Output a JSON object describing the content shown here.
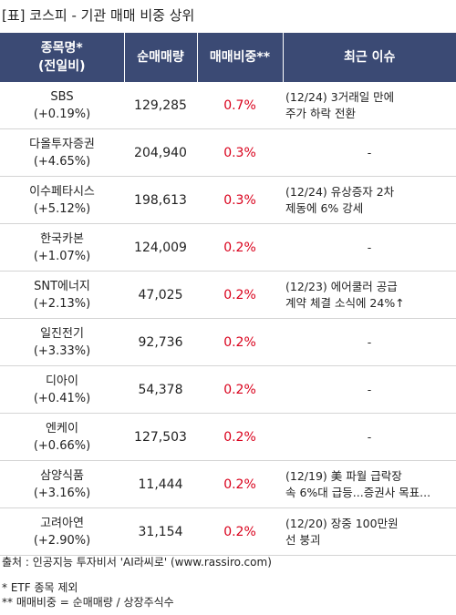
{
  "title": "[표] 코스피 - 기관 매매 비중 상위",
  "headers": {
    "name_line1": "종목명*",
    "name_line2": "(전일비)",
    "volume": "순매매량",
    "ratio": "매매비중**",
    "issue": "최근 이슈"
  },
  "rows": [
    {
      "name": "SBS",
      "change": "(+0.19%)",
      "volume": "129,285",
      "ratio": "0.7%",
      "issue_line1": "(12/24) 3거래일 만에",
      "issue_line2": "주가 하락 전환"
    },
    {
      "name": "다올투자증권",
      "change": "(+4.65%)",
      "volume": "204,940",
      "ratio": "0.3%",
      "issue_line1": "-",
      "issue_line2": ""
    },
    {
      "name": "이수페타시스",
      "change": "(+5.12%)",
      "volume": "198,613",
      "ratio": "0.3%",
      "issue_line1": "(12/24) 유상증자 2차",
      "issue_line2": "제동에 6% 강세"
    },
    {
      "name": "한국카본",
      "change": "(+1.07%)",
      "volume": "124,009",
      "ratio": "0.2%",
      "issue_line1": "-",
      "issue_line2": ""
    },
    {
      "name": "SNT에너지",
      "change": "(+2.13%)",
      "volume": "47,025",
      "ratio": "0.2%",
      "issue_line1": "(12/23) 에어쿨러 공급",
      "issue_line2": "계약 체결 소식에 24%↑"
    },
    {
      "name": "일진전기",
      "change": "(+3.33%)",
      "volume": "92,736",
      "ratio": "0.2%",
      "issue_line1": "-",
      "issue_line2": ""
    },
    {
      "name": "디아이",
      "change": "(+0.41%)",
      "volume": "54,378",
      "ratio": "0.2%",
      "issue_line1": "-",
      "issue_line2": ""
    },
    {
      "name": "엔케이",
      "change": "(+0.66%)",
      "volume": "127,503",
      "ratio": "0.2%",
      "issue_line1": "-",
      "issue_line2": ""
    },
    {
      "name": "삼양식품",
      "change": "(+3.16%)",
      "volume": "11,444",
      "ratio": "0.2%",
      "issue_line1": "(12/19) 美 파월 급락장",
      "issue_line2": " 속 6%대 급등...증권사 목표..."
    },
    {
      "name": "고려아연",
      "change": "(+2.90%)",
      "volume": "31,154",
      "ratio": "0.2%",
      "issue_line1": "(12/20) 장중 100만원",
      "issue_line2": " 선 붕괴"
    }
  ],
  "footer": {
    "source": "출처 : 인공지능 투자비서 'AI라씨로' (www.rassiro.com)",
    "note1": "* ETF 종목 제외",
    "note2": "** 매매비중 = 순매매량 / 상장주식수"
  },
  "colors": {
    "header_bg": "#3b4a74",
    "ratio_text": "#d9001b"
  }
}
